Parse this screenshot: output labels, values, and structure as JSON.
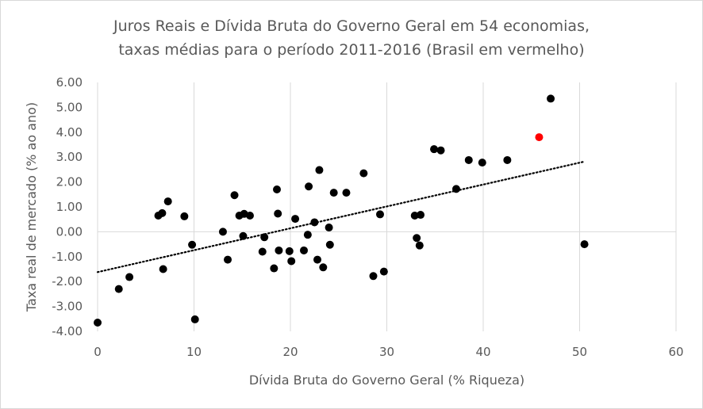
{
  "chart_data": {
    "type": "scatter",
    "title_line1": "Juros Reais e Dívida Bruta do Governo Geral em 54 economias,",
    "title_line2": "taxas médias para o período 2011-2016 (Brasil em vermelho)",
    "xlabel": "Dívida Bruta do Governo Geral (% Riqueza)",
    "ylabel": "Taxa real de mercado (% ao ano)",
    "xlim": [
      0,
      60
    ],
    "ylim": [
      -4,
      6
    ],
    "x_ticks": [
      0,
      10,
      20,
      30,
      40,
      50,
      60
    ],
    "x_tick_labels": [
      "0",
      "10",
      "20",
      "30",
      "40",
      "50",
      "60"
    ],
    "y_ticks": [
      6,
      5,
      4,
      3,
      2,
      1,
      0,
      -1,
      -2,
      -3,
      -4
    ],
    "y_tick_labels": [
      "6.00",
      "5.00",
      "4.00",
      "3.00",
      "2.00",
      "1.00",
      "0.00",
      "-1.00",
      "-2.00",
      "-3.00",
      "-4.00"
    ],
    "grid": "vertical",
    "colors": {
      "point": "#000000",
      "highlight": "#ff0000",
      "grid": "#d9d9d9",
      "text": "#595959"
    },
    "trendline": {
      "style": "dotted",
      "x": [
        0,
        50.5
      ],
      "y": [
        -1.62,
        2.82
      ]
    },
    "highlight_point": {
      "x": 45.8,
      "y": 3.8
    },
    "points": [
      {
        "x": 0.0,
        "y": -3.65
      },
      {
        "x": 2.2,
        "y": -2.3
      },
      {
        "x": 3.3,
        "y": -1.82
      },
      {
        "x": 6.3,
        "y": 0.65
      },
      {
        "x": 6.7,
        "y": 0.75
      },
      {
        "x": 6.8,
        "y": -1.5
      },
      {
        "x": 7.3,
        "y": 1.22
      },
      {
        "x": 9.0,
        "y": 0.62
      },
      {
        "x": 9.8,
        "y": -0.52
      },
      {
        "x": 10.1,
        "y": -3.52
      },
      {
        "x": 13.0,
        "y": 0.0
      },
      {
        "x": 13.5,
        "y": -1.12
      },
      {
        "x": 14.2,
        "y": 1.47
      },
      {
        "x": 14.7,
        "y": 0.65
      },
      {
        "x": 15.1,
        "y": -0.17
      },
      {
        "x": 15.2,
        "y": 0.72
      },
      {
        "x": 15.8,
        "y": 0.65
      },
      {
        "x": 17.1,
        "y": -0.8
      },
      {
        "x": 17.3,
        "y": -0.22
      },
      {
        "x": 18.3,
        "y": -1.47
      },
      {
        "x": 18.6,
        "y": 1.7
      },
      {
        "x": 18.7,
        "y": 0.73
      },
      {
        "x": 18.8,
        "y": -0.75
      },
      {
        "x": 19.9,
        "y": -0.78
      },
      {
        "x": 20.1,
        "y": -1.18
      },
      {
        "x": 20.5,
        "y": 0.52
      },
      {
        "x": 21.4,
        "y": -0.75
      },
      {
        "x": 21.8,
        "y": -0.12
      },
      {
        "x": 21.9,
        "y": 1.82
      },
      {
        "x": 22.5,
        "y": 0.38
      },
      {
        "x": 22.8,
        "y": -1.12
      },
      {
        "x": 23.0,
        "y": 2.48
      },
      {
        "x": 23.4,
        "y": -1.43
      },
      {
        "x": 24.0,
        "y": 0.17
      },
      {
        "x": 24.1,
        "y": -0.52
      },
      {
        "x": 24.5,
        "y": 1.57
      },
      {
        "x": 25.8,
        "y": 1.57
      },
      {
        "x": 27.6,
        "y": 2.35
      },
      {
        "x": 28.6,
        "y": -1.78
      },
      {
        "x": 29.3,
        "y": 0.7
      },
      {
        "x": 29.7,
        "y": -1.6
      },
      {
        "x": 32.9,
        "y": 0.65
      },
      {
        "x": 33.1,
        "y": -0.25
      },
      {
        "x": 33.4,
        "y": -0.55
      },
      {
        "x": 33.5,
        "y": 0.68
      },
      {
        "x": 34.9,
        "y": 3.32
      },
      {
        "x": 35.6,
        "y": 3.27
      },
      {
        "x": 37.2,
        "y": 1.72
      },
      {
        "x": 38.5,
        "y": 2.88
      },
      {
        "x": 39.9,
        "y": 2.78
      },
      {
        "x": 42.5,
        "y": 2.88
      },
      {
        "x": 47.0,
        "y": 5.35
      },
      {
        "x": 50.5,
        "y": -0.5
      }
    ]
  }
}
